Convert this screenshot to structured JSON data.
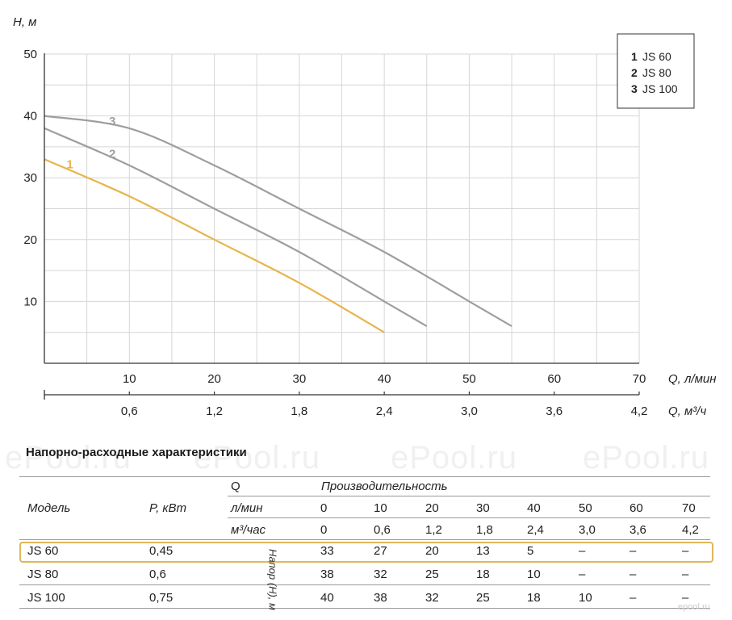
{
  "chart_data": {
    "type": "line",
    "ylabel": "H, м",
    "xlabel": "Q, л/мин",
    "x2label": "Q, м³/ч",
    "xlim": [
      0,
      70
    ],
    "ylim": [
      0,
      50
    ],
    "y_ticks": [
      "10",
      "20",
      "30",
      "40",
      "50"
    ],
    "y_tick_values": [
      10,
      20,
      30,
      40,
      50
    ],
    "x_ticks": [
      "10",
      "20",
      "30",
      "40",
      "50",
      "60",
      "70"
    ],
    "x_tick_values": [
      10,
      20,
      30,
      40,
      50,
      60,
      70
    ],
    "x2_ticks": [
      "0,6",
      "1,2",
      "1,8",
      "2,4",
      "3,0",
      "3,6",
      "4,2"
    ],
    "grid": true,
    "legend_position": "top-right",
    "series": [
      {
        "name": "JS 60",
        "number": "1",
        "color": "#e7b54a",
        "points": [
          [
            0,
            33
          ],
          [
            10,
            27
          ],
          [
            20,
            20
          ],
          [
            30,
            13
          ],
          [
            40,
            5
          ]
        ]
      },
      {
        "name": "JS 80",
        "number": "2",
        "color": "#9e9e9e",
        "points": [
          [
            0,
            38
          ],
          [
            10,
            32
          ],
          [
            20,
            25
          ],
          [
            30,
            18
          ],
          [
            40,
            10
          ],
          [
            45,
            6
          ]
        ]
      },
      {
        "name": "JS 100",
        "number": "3",
        "color": "#9e9e9e",
        "points": [
          [
            0,
            40
          ],
          [
            10,
            38
          ],
          [
            20,
            32
          ],
          [
            30,
            25
          ],
          [
            40,
            18
          ],
          [
            50,
            10
          ],
          [
            55,
            6
          ]
        ]
      }
    ]
  },
  "table": {
    "title": "Напорно-расходные характеристики",
    "col_model": "Модель",
    "col_power": "P, кВт",
    "q_label": "Q",
    "throughput_label": "Производительность",
    "unit_lmin": "л/мин",
    "unit_m3h": "м³/час",
    "lmin_values": [
      "0",
      "10",
      "20",
      "30",
      "40",
      "50",
      "60",
      "70"
    ],
    "m3h_values": [
      "0",
      "0,6",
      "1,2",
      "1,8",
      "2,4",
      "3,0",
      "3,6",
      "4,2"
    ],
    "head_label": "Напор (H), м",
    "rows": [
      {
        "model": "JS 60",
        "power": "0,45",
        "values": [
          "33",
          "27",
          "20",
          "13",
          "5",
          "–",
          "–",
          "–"
        ]
      },
      {
        "model": "JS 80",
        "power": "0,6",
        "values": [
          "38",
          "32",
          "25",
          "18",
          "10",
          "–",
          "–",
          "–"
        ]
      },
      {
        "model": "JS 100",
        "power": "0,75",
        "values": [
          "40",
          "38",
          "32",
          "25",
          "18",
          "10",
          "–",
          "–"
        ]
      }
    ]
  },
  "watermark": "ePool.ru",
  "footer_logo": "epool.ru"
}
